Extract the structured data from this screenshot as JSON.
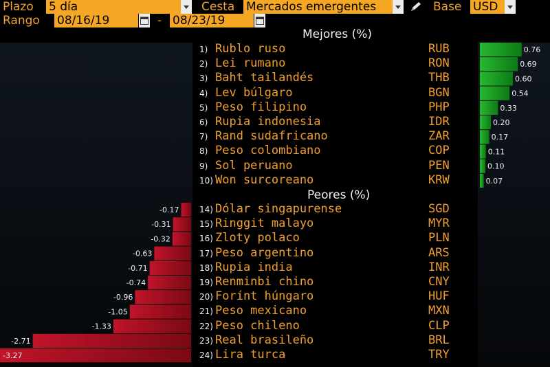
{
  "header": {
    "plazo_label": "Plazo",
    "plazo_value": "5 día",
    "cesta_label": "Cesta",
    "cesta_value": "Mercados emergentes",
    "base_label": "Base",
    "base_value": "USD",
    "rango_label": "Rango",
    "date_from": "08/16/19",
    "date_sep": "-",
    "date_to": "08/23/19"
  },
  "sections": {
    "best_title": "Mejores (%)",
    "worst_title": "Peores (%)"
  },
  "colors": {
    "label": "#f0a030",
    "field_bg": "#f5a623",
    "positive": "#1fa02a",
    "negative": "#b0101e"
  },
  "chart_data": {
    "type": "bar",
    "title": "",
    "best": [
      {
        "rank": "1)",
        "name": "Rublo ruso",
        "code": "RUB",
        "value": 0.76
      },
      {
        "rank": "2)",
        "name": "Lei rumano",
        "code": "RON",
        "value": 0.69
      },
      {
        "rank": "3)",
        "name": "Baht tailandés",
        "code": "THB",
        "value": 0.6
      },
      {
        "rank": "4)",
        "name": "Lev búlgaro",
        "code": "BGN",
        "value": 0.54
      },
      {
        "rank": "5)",
        "name": "Peso filipino",
        "code": "PHP",
        "value": 0.33
      },
      {
        "rank": "6)",
        "name": "Rupia indonesia",
        "code": "IDR",
        "value": 0.2
      },
      {
        "rank": "7)",
        "name": "Rand sudafricano",
        "code": "ZAR",
        "value": 0.17
      },
      {
        "rank": "8)",
        "name": "Peso colombiano",
        "code": "COP",
        "value": 0.11
      },
      {
        "rank": "9)",
        "name": "Sol peruano",
        "code": "PEN",
        "value": 0.1
      },
      {
        "rank": "10)",
        "name": "Won surcoreano",
        "code": "KRW",
        "value": 0.07
      }
    ],
    "worst": [
      {
        "rank": "14)",
        "name": "Dólar singapurense",
        "code": "SGD",
        "value": -0.17
      },
      {
        "rank": "15)",
        "name": "Ringgit malayo",
        "code": "MYR",
        "value": -0.31
      },
      {
        "rank": "16)",
        "name": "Zloty polaco",
        "code": "PLN",
        "value": -0.32
      },
      {
        "rank": "17)",
        "name": "Peso argentino",
        "code": "ARS",
        "value": -0.63
      },
      {
        "rank": "18)",
        "name": "Rupia india",
        "code": "INR",
        "value": -0.71
      },
      {
        "rank": "19)",
        "name": "Renminbi chino",
        "code": "CNY",
        "value": -0.74
      },
      {
        "rank": "20)",
        "name": "Forínt húngaro",
        "code": "HUF",
        "value": -0.96
      },
      {
        "rank": "21)",
        "name": "Peso mexicano",
        "code": "MXN",
        "value": -1.05
      },
      {
        "rank": "22)",
        "name": "Peso chileno",
        "code": "CLP",
        "value": -1.33
      },
      {
        "rank": "23)",
        "name": "Real brasileño",
        "code": "BRL",
        "value": -2.71
      },
      {
        "rank": "24)",
        "name": "Lira turca",
        "code": "TRY",
        "value": -3.27
      }
    ],
    "value_labels_best": [
      "0.76",
      "0.69",
      "0.60",
      "0.54",
      "0.33",
      "0.20",
      "0.17",
      "0.11",
      "0.10",
      "0.07"
    ],
    "value_labels_worst": [
      "-0.17",
      "-0.31",
      "-0.32",
      "-0.63",
      "-0.71",
      "-0.74",
      "-0.96",
      "-1.05",
      "-1.33",
      "-2.71",
      "-3.27"
    ]
  }
}
